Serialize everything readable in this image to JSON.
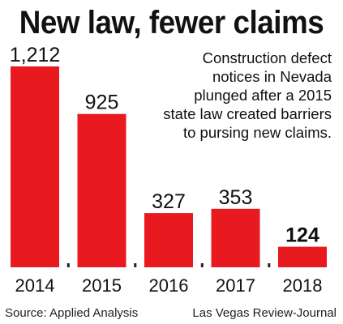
{
  "chart_data": {
    "type": "bar",
    "title": "New law, fewer claims",
    "subtitle": "Construction defect notices in Nevada plunged after a 2015 state law created barriers to pursing new claims.",
    "categories": [
      "2014",
      "2015",
      "2016",
      "2017",
      "2018"
    ],
    "values": [
      1212,
      925,
      327,
      353,
      124
    ],
    "value_labels": [
      "1,212",
      "925",
      "327",
      "353",
      "124"
    ],
    "highlight_category": "2018",
    "xlabel": "",
    "ylabel": "",
    "ylim": [
      0,
      1212
    ],
    "grid": false,
    "legend": "none",
    "bar_color": "#e8191f"
  },
  "footer": {
    "source": "Source: Applied Analysis",
    "credit": "Las Vegas Review-Journal"
  }
}
